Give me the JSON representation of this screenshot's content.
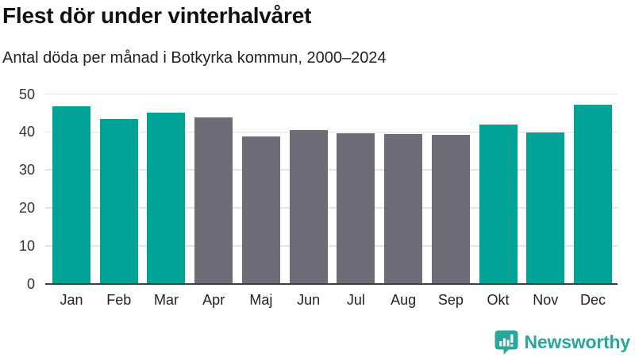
{
  "header": {
    "title": "Flest dör under vinterhalvåret",
    "subtitle": "Antal döda per månad i Botkyrka kommun, 2000–2024"
  },
  "chart_data": {
    "type": "bar",
    "title": "Flest dör under vinterhalvåret",
    "subtitle": "Antal döda per månad i Botkyrka kommun, 2000–2024",
    "categories": [
      "Jan",
      "Feb",
      "Mar",
      "Apr",
      "Maj",
      "Jun",
      "Jul",
      "Aug",
      "Sep",
      "Okt",
      "Nov",
      "Dec"
    ],
    "values": [
      46.8,
      43.4,
      45.1,
      43.9,
      38.8,
      40.4,
      39.6,
      39.5,
      39.3,
      42.0,
      39.9,
      47.2
    ],
    "bar_colors": [
      "#00a396",
      "#00a396",
      "#00a396",
      "#6e6c76",
      "#6e6c76",
      "#6e6c76",
      "#6e6c76",
      "#6e6c76",
      "#6e6c76",
      "#00a396",
      "#00a396",
      "#00a396"
    ],
    "highlight_color": "#00a396",
    "base_color": "#6e6c76",
    "xlabel": "",
    "ylabel": "",
    "ylim": [
      0,
      50
    ],
    "yticks": [
      0,
      10,
      20,
      30,
      40,
      50
    ],
    "grid": "horizontal-light",
    "gridline_color": "#e4e4e4",
    "axis_line_color": "#3f3f3f",
    "legend": "none"
  },
  "footer": {
    "brand": "Newsworthy",
    "brand_color": "#2aa79b",
    "icon": "newsworthy-speech-bubble-bar-chart-icon",
    "icon_color": "#2aa79b"
  }
}
